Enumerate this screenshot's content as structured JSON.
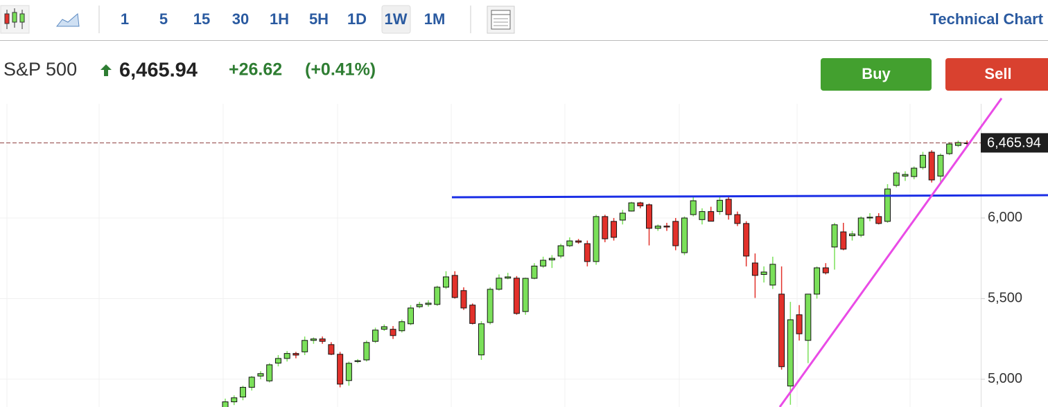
{
  "toolbar": {
    "intervals": [
      "1",
      "5",
      "15",
      "30",
      "1H",
      "5H",
      "1D",
      "1W",
      "1M"
    ],
    "selected": "1W",
    "title": "Technical Chart"
  },
  "header": {
    "symbol": "S&P 500",
    "price": "6,465.94",
    "change": "+26.62",
    "change_pct": "(+0.41%)",
    "buy": "Buy",
    "sell": "Sell"
  },
  "chart_data": {
    "type": "candlestick",
    "up_color": "#7be05a",
    "down_color": "#e2312b",
    "open": [
      4820,
      4860,
      4890,
      4950,
      5020,
      4990,
      5100,
      5129,
      5160,
      5170,
      5241,
      5250,
      5215,
      5155,
      4992,
      5110,
      5120,
      5235,
      5310,
      5310,
      5301,
      5344,
      5450,
      5464,
      5464,
      5571,
      5644,
      5550,
      5460,
      5151,
      5352,
      5558,
      5627,
      5627,
      5420,
      5626,
      5702,
      5740,
      5764,
      5828,
      5858,
      5841,
      5730,
      6009,
      5979,
      5987,
      6043,
      6094,
      6082,
      5936,
      5950,
      5979,
      5785,
      6021,
      5990,
      6040,
      6040,
      6116,
      6021,
      5966,
      5721,
      5650,
      5584,
      5528,
      4958,
      5400,
      5241,
      5528,
      5691,
      5820,
      5914,
      5890,
      5893,
      6000,
      6009,
      5979,
      6202,
      6260,
      6257,
      6313,
      6408,
      6260,
      6399,
      6450,
      6466
    ],
    "high": [
      4880,
      4900,
      4960,
      5020,
      5050,
      5100,
      5150,
      5175,
      5170,
      5265,
      5260,
      5265,
      5230,
      5170,
      5110,
      5125,
      5240,
      5320,
      5340,
      5330,
      5370,
      5460,
      5480,
      5490,
      5580,
      5670,
      5670,
      5570,
      5470,
      5360,
      5570,
      5650,
      5660,
      5640,
      5630,
      5720,
      5760,
      5770,
      5840,
      5880,
      5870,
      5860,
      6020,
      6020,
      6000,
      6050,
      6100,
      6100,
      6090,
      5960,
      5970,
      6000,
      6010,
      6130,
      6060,
      6070,
      6130,
      6140,
      6040,
      5980,
      5780,
      5700,
      5760,
      5700,
      5480,
      5460,
      5530,
      5700,
      5720,
      5970,
      5970,
      5920,
      6010,
      6030,
      6030,
      6210,
      6290,
      6290,
      6320,
      6410,
      6420,
      6400,
      6470,
      6480,
      6480
    ],
    "low": [
      4800,
      4840,
      4870,
      4930,
      5000,
      4980,
      5080,
      5110,
      5130,
      5150,
      5220,
      5220,
      5150,
      4950,
      4960,
      5100,
      5110,
      5225,
      5300,
      5250,
      5290,
      5335,
      5440,
      5450,
      5455,
      5560,
      5500,
      5430,
      5340,
      5120,
      5340,
      5550,
      5620,
      5400,
      5400,
      5620,
      5690,
      5690,
      5750,
      5820,
      5840,
      5700,
      5710,
      5850,
      5860,
      5960,
      6040,
      6060,
      5830,
      5920,
      5920,
      5800,
      5770,
      6010,
      5960,
      5980,
      6020,
      5990,
      5950,
      5700,
      5504,
      5600,
      5560,
      5060,
      4842,
      5240,
      5100,
      5500,
      5650,
      5680,
      5800,
      5860,
      5880,
      5980,
      5960,
      5970,
      6190,
      6230,
      6240,
      6300,
      6220,
      6220,
      6390,
      6440,
      6450
    ],
    "close": [
      4860,
      4885,
      4950,
      5013,
      5035,
      5090,
      5129,
      5160,
      5150,
      5241,
      5250,
      5235,
      5155,
      4970,
      5099,
      5115,
      5228,
      5305,
      5326,
      5271,
      5357,
      5442,
      5464,
      5472,
      5571,
      5635,
      5507,
      5442,
      5346,
      5344,
      5558,
      5627,
      5635,
      5408,
      5626,
      5702,
      5738,
      5750,
      5828,
      5858,
      5850,
      5730,
      6009,
      5871,
      5880,
      6030,
      6094,
      6075,
      5936,
      5950,
      5944,
      5828,
      6000,
      6107,
      6040,
      5980,
      6110,
      6021,
      5966,
      5764,
      5644,
      5665,
      5713,
      5078,
      5369,
      5282,
      5528,
      5691,
      5660,
      5958,
      5807,
      5901,
      6000,
      6005,
      5966,
      6180,
      6279,
      6270,
      6309,
      6389,
      6236,
      6389,
      6459,
      6468,
      6465.94
    ],
    "ylim": [
      4828,
      6708
    ],
    "yticks": [
      {
        "value": 5000,
        "label": "5,000"
      },
      {
        "value": 5500,
        "label": "5,500"
      },
      {
        "value": 6000,
        "label": "6,000"
      }
    ],
    "price_line": {
      "value": 6465.94,
      "label": "6,465.94"
    },
    "grid": true
  }
}
